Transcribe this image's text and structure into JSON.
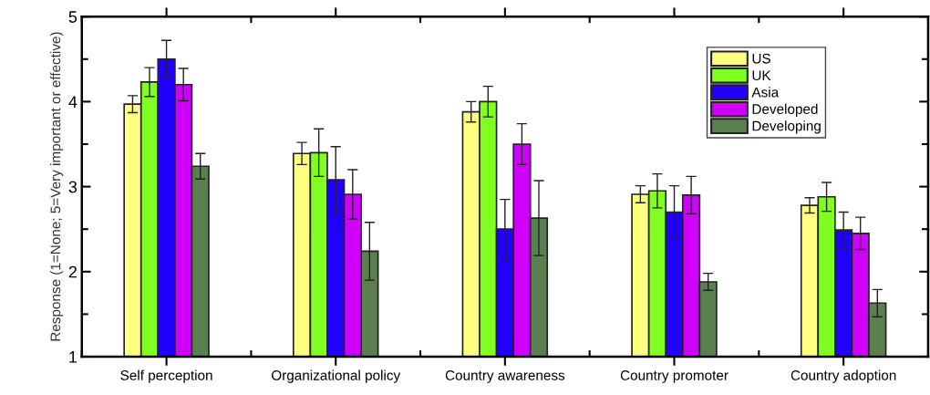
{
  "chart_data": {
    "type": "bar",
    "ylabel": "Response (1=None; 5=Very important or effective)",
    "categories": [
      "Self perception",
      "Organizational policy",
      "Country awareness",
      "Country promoter",
      "Country adoption"
    ],
    "series": [
      {
        "name": "US",
        "color": "#ffff80",
        "values": [
          3.97,
          3.39,
          3.88,
          2.91,
          2.78
        ],
        "errors": [
          0.1,
          0.13,
          0.12,
          0.1,
          0.09
        ]
      },
      {
        "name": "UK",
        "color": "#80ff20",
        "values": [
          4.23,
          3.4,
          4.0,
          2.95,
          2.88
        ],
        "errors": [
          0.17,
          0.28,
          0.18,
          0.2,
          0.17
        ]
      },
      {
        "name": "Asia",
        "color": "#2000ff",
        "values": [
          4.5,
          3.08,
          2.5,
          2.7,
          2.49
        ],
        "errors": [
          0.22,
          0.39,
          0.35,
          0.31,
          0.21
        ]
      },
      {
        "name": "Developed",
        "color": "#d000ff",
        "values": [
          4.2,
          2.91,
          3.5,
          2.9,
          2.45
        ],
        "errors": [
          0.19,
          0.29,
          0.24,
          0.22,
          0.19
        ]
      },
      {
        "name": "Developing",
        "color": "#5a8050",
        "values": [
          3.24,
          2.24,
          2.63,
          1.88,
          1.63
        ],
        "errors": [
          0.15,
          0.34,
          0.44,
          0.1,
          0.16
        ]
      }
    ],
    "ylim": [
      1,
      5
    ],
    "yticks": [
      1,
      2,
      3,
      4,
      5
    ],
    "grid": false,
    "legend": "top right"
  }
}
